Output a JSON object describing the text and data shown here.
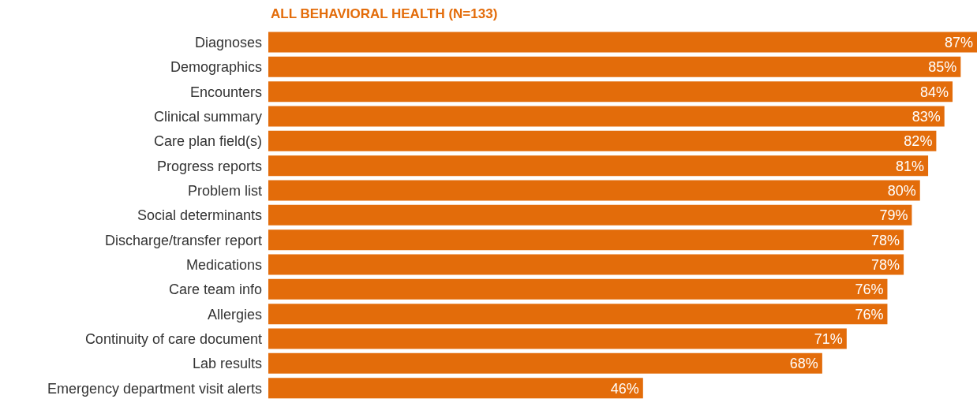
{
  "chart_data": {
    "type": "bar",
    "orientation": "horizontal",
    "title": "ALL BEHAVIORAL HEALTH (N=133)",
    "categories": [
      "Diagnoses",
      "Demographics",
      "Encounters",
      "Clinical summary",
      "Care plan field(s)",
      "Progress reports",
      "Problem list",
      "Social determinants",
      "Discharge/transfer report",
      "Medications",
      "Care team info",
      "Allergies",
      "Continuity of care document",
      "Lab results",
      "Emergency department visit alerts"
    ],
    "values": [
      87,
      85,
      84,
      83,
      82,
      81,
      80,
      79,
      78,
      78,
      76,
      76,
      71,
      68,
      46
    ],
    "value_labels": [
      "87%",
      "85%",
      "84%",
      "83%",
      "82%",
      "81%",
      "80%",
      "79%",
      "78%",
      "78%",
      "76%",
      "76%",
      "71%",
      "68%",
      "46%"
    ],
    "color": "#e36c0a"
  }
}
